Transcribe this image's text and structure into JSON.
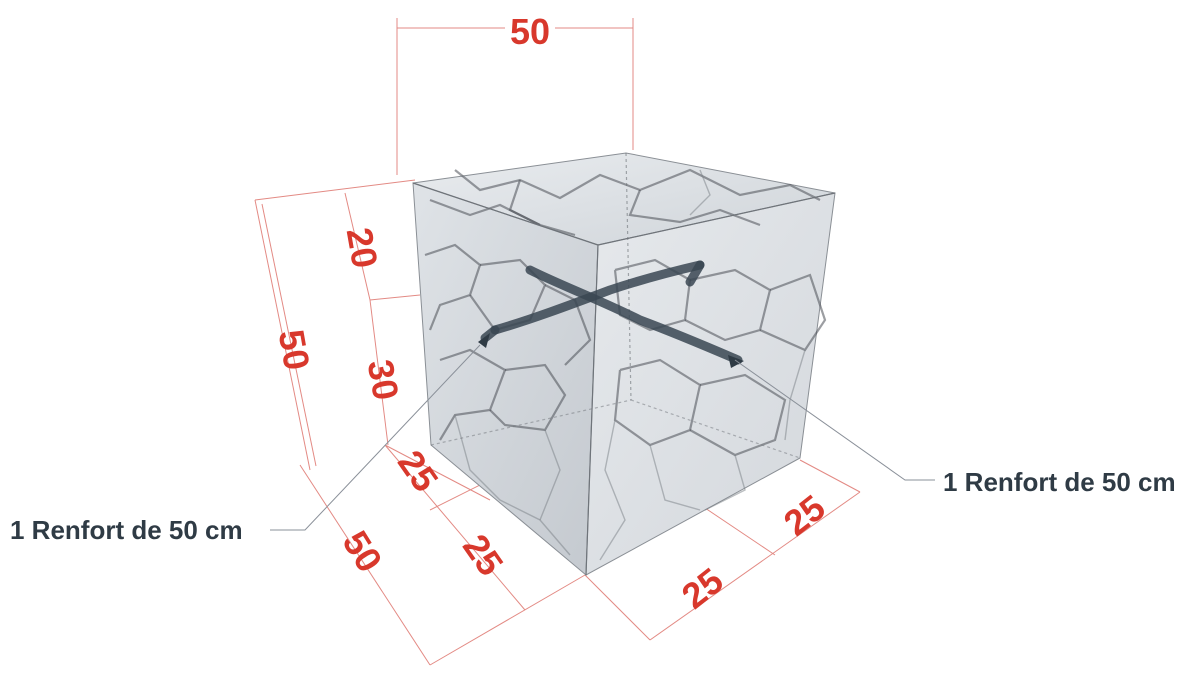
{
  "dimensions": {
    "top_width": "50",
    "left_height": "50",
    "height_upper": "20",
    "height_lower": "30",
    "depth_total": "50",
    "depth_part_1": "25",
    "depth_part_2": "25",
    "width_part_1": "25",
    "width_part_2": "25"
  },
  "callouts": {
    "left_reinforcement": "1 Renfort de 50 cm",
    "right_reinforcement": "1 Renfort de 50 cm"
  },
  "colors": {
    "dimension_text": "#d8382c",
    "callout_text": "#2f3b45",
    "reinforcement_bar": "#3a4752"
  }
}
